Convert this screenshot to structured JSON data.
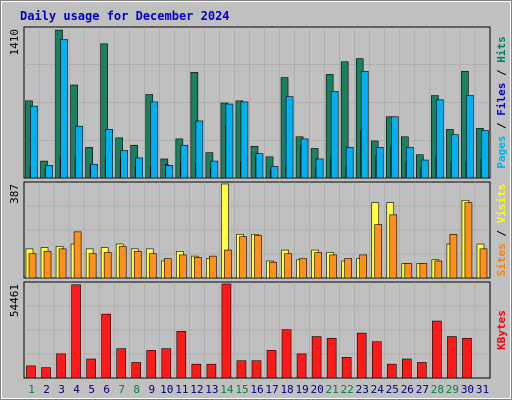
{
  "chart_data": {
    "type": "bar",
    "title": "Daily usage for December 2024",
    "days": [
      "1",
      "2",
      "3",
      "4",
      "5",
      "6",
      "7",
      "8",
      "9",
      "10",
      "11",
      "12",
      "13",
      "14",
      "15",
      "16",
      "17",
      "18",
      "19",
      "20",
      "21",
      "22",
      "23",
      "24",
      "25",
      "26",
      "27",
      "28",
      "29",
      "30",
      "31"
    ],
    "weekend_days": [
      "1",
      "7",
      "8",
      "14",
      "15",
      "21",
      "22",
      "28",
      "29"
    ],
    "panels": [
      {
        "name": "hits-files-pages",
        "ymax_label": "1410",
        "ymax": 1410,
        "legend": [
          {
            "text": "Pages",
            "color": "#00b0f0"
          },
          {
            "text": " / ",
            "color": "#000000"
          },
          {
            "text": "Files",
            "color": "#0000cc"
          },
          {
            "text": " / ",
            "color": "#000000"
          },
          {
            "text": "Hits",
            "color": "#008060"
          }
        ],
        "series": [
          {
            "name": "Hits",
            "color": "#1a8060",
            "values": [
              730,
              160,
              1400,
              880,
              290,
              1270,
              380,
              310,
              790,
              180,
              370,
              1000,
              240,
              710,
              730,
              300,
              200,
              950,
              390,
              280,
              980,
              1100,
              1130,
              350,
              580,
              390,
              220,
              780,
              460,
              1010,
              470
            ]
          },
          {
            "name": "Files",
            "color": "#0000b0",
            "values": [
              100,
              90,
              200,
              200,
              130,
              200,
              180,
              110,
              100,
              130,
              150,
              140,
              90,
              500,
              150,
              200,
              80,
              100,
              300,
              100,
              200,
              100,
              450,
              200,
              300,
              150,
              100,
              200,
              150,
              150,
              180
            ]
          },
          {
            "name": "Pages",
            "color": "#00b0f0",
            "values": [
              680,
              120,
              1310,
              490,
              130,
              460,
              260,
              190,
              720,
              120,
              310,
              540,
              160,
              700,
              720,
              230,
              110,
              770,
              370,
              180,
              820,
              290,
              1010,
              290,
              580,
              290,
              170,
              740,
              410,
              780,
              450
            ]
          }
        ]
      },
      {
        "name": "visits-sites",
        "ymax_label": "387",
        "ymax": 387,
        "legend": [
          {
            "text": "Sites",
            "color": "#ff8000"
          },
          {
            "text": " / ",
            "color": "#000000"
          },
          {
            "text": "Visits",
            "color": "#ffff00"
          }
        ],
        "series": [
          {
            "name": "Visits",
            "color": "#ffff40",
            "values": [
              120,
              125,
              130,
              140,
              120,
              125,
              140,
              120,
              120,
              70,
              110,
              90,
              80,
              387,
              180,
              180,
              70,
              115,
              75,
              115,
              105,
              70,
              80,
              310,
              310,
              60,
              60,
              75,
              140,
              320,
              140
            ]
          },
          {
            "name": "Sites",
            "color": "#ff9020",
            "values": [
              100,
              110,
              120,
              190,
              100,
              105,
              130,
              110,
              100,
              80,
              95,
              85,
              90,
              115,
              170,
              175,
              65,
              100,
              80,
              105,
              95,
              80,
              95,
              220,
              260,
              60,
              60,
              70,
              180,
              310,
              120
            ]
          }
        ]
      },
      {
        "name": "kbytes",
        "ymax_label": "54461",
        "ymax": 54461,
        "legend": [
          {
            "text": "KBytes",
            "color": "#ff0000"
          }
        ],
        "series": [
          {
            "name": "KBytes",
            "color": "#ff1a1a",
            "values": [
              7000,
              6000,
              14000,
              54000,
              11000,
              37000,
              17000,
              9000,
              16000,
              17000,
              27000,
              8000,
              8000,
              54461,
              10000,
              10000,
              16000,
              28000,
              14000,
              24000,
              23000,
              12000,
              26000,
              21000,
              8000,
              11000,
              9000,
              33000,
              24000,
              23000,
              0
            ]
          }
        ]
      }
    ]
  }
}
